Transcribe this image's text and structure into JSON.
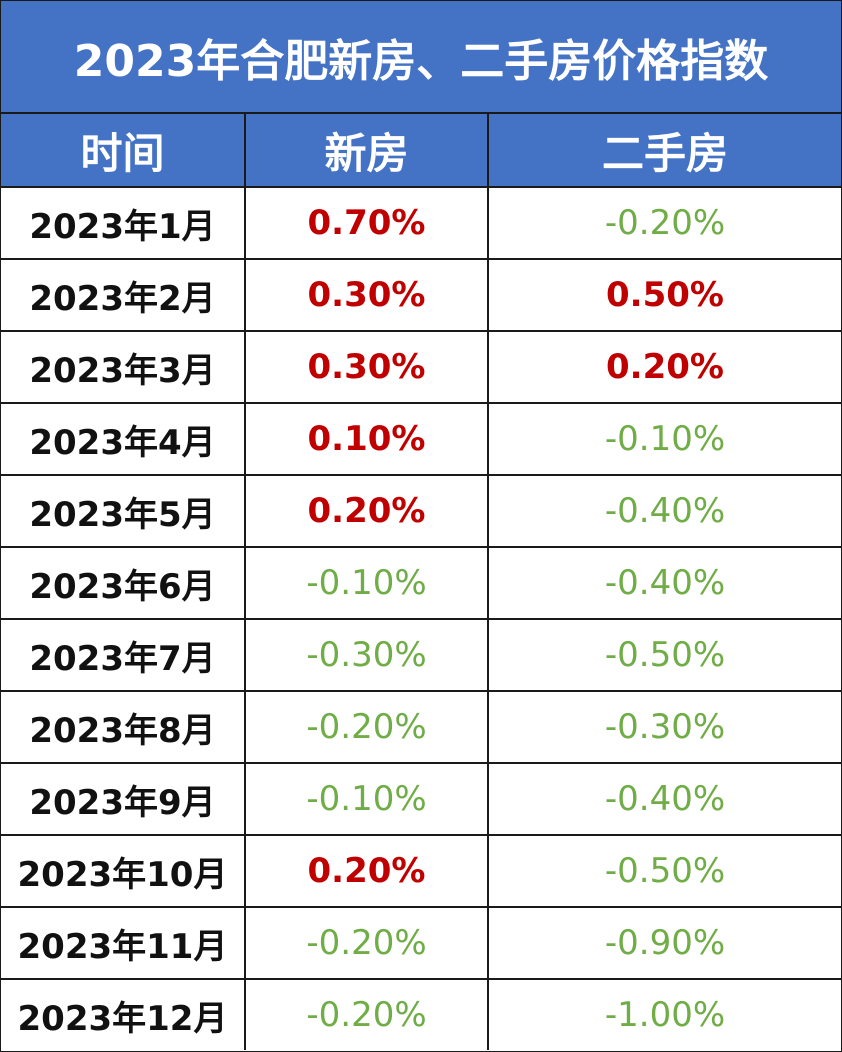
{
  "title": "2023年合肥新房、二手房价格指数",
  "headers": [
    "时间",
    "新房",
    "二手房"
  ],
  "colors": {
    "header_bg": "#4472c4",
    "header_text": "#ffffff",
    "rise": "#c00000",
    "fall": "#70ad47",
    "grid": "#1a1a1a"
  },
  "rows": [
    {
      "month": "2023年1月",
      "new": "0.70%",
      "second": "-0.20%"
    },
    {
      "month": "2023年2月",
      "new": "0.30%",
      "second": "0.50%"
    },
    {
      "month": "2023年3月",
      "new": "0.30%",
      "second": "0.20%"
    },
    {
      "month": "2023年4月",
      "new": "0.10%",
      "second": "-0.10%"
    },
    {
      "month": "2023年5月",
      "new": "0.20%",
      "second": "-0.40%"
    },
    {
      "month": "2023年6月",
      "new": "-0.10%",
      "second": "-0.40%"
    },
    {
      "month": "2023年7月",
      "new": "-0.30%",
      "second": "-0.50%"
    },
    {
      "month": "2023年8月",
      "new": "-0.20%",
      "second": "-0.30%"
    },
    {
      "month": "2023年9月",
      "new": "-0.10%",
      "second": "-0.40%"
    },
    {
      "month": "2023年10月",
      "new": "0.20%",
      "second": "-0.50%"
    },
    {
      "month": "2023年11月",
      "new": "-0.20%",
      "second": "-0.90%"
    },
    {
      "month": "2023年12月",
      "new": "-0.20%",
      "second": "-1.00%"
    }
  ]
}
